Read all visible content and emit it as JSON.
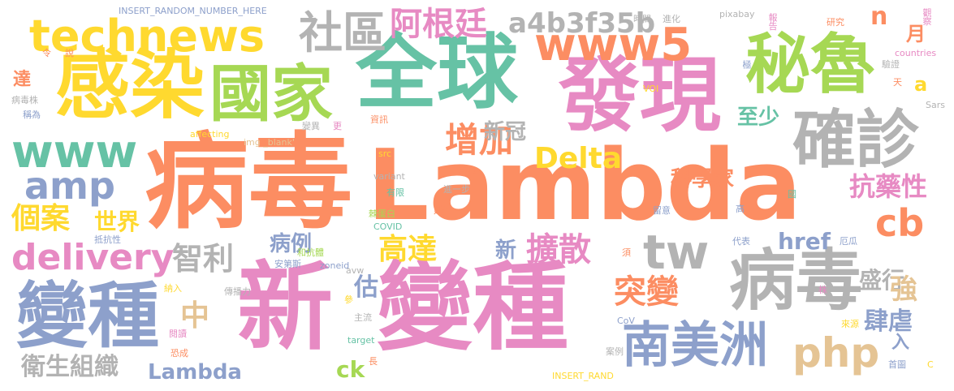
{
  "words": [
    {
      "text": "病毒",
      "color": "#fc8d62"
    },
    {
      "text": "Lambda",
      "color": "#fc8d62"
    },
    {
      "text": "新",
      "color": "#e78ac3"
    },
    {
      "text": "變種",
      "color": "#e78ac3"
    },
    {
      "text": "感染",
      "color": "#ffd92f"
    },
    {
      "text": "國家",
      "color": "#a6d854"
    },
    {
      "text": "全球",
      "color": "#66c2a5"
    },
    {
      "text": "發現",
      "color": "#e78ac3"
    },
    {
      "text": "秘魯",
      "color": "#a6d854"
    },
    {
      "text": "www5",
      "color": "#fc8d62"
    },
    {
      "text": "technews",
      "color": "#ffd92f"
    },
    {
      "text": "確診",
      "color": "#b3b3b3"
    },
    {
      "text": "病毒",
      "color": "#b3b3b3"
    },
    {
      "text": "變種",
      "color": "#8da0cb"
    },
    {
      "text": "南美洲",
      "color": "#8da0cb"
    },
    {
      "text": "www",
      "color": "#66c2a5"
    },
    {
      "text": "amp",
      "color": "#8da0cb"
    },
    {
      "text": "delivery",
      "color": "#e78ac3"
    },
    {
      "text": "社區",
      "color": "#b3b3b3"
    },
    {
      "text": "阿根廷",
      "color": "#e78ac3"
    },
    {
      "text": "a4b3f35b",
      "color": "#b3b3b3"
    },
    {
      "text": "tw",
      "color": "#b3b3b3"
    },
    {
      "text": "增加",
      "color": "#fc8d62"
    },
    {
      "text": "Delta",
      "color": "#ffd92f"
    },
    {
      "text": "cb",
      "color": "#fc8d62"
    },
    {
      "text": "擴散",
      "color": "#e78ac3"
    },
    {
      "text": "突變",
      "color": "#fc8d62"
    },
    {
      "text": "php",
      "color": "#e5c494"
    },
    {
      "text": "智利",
      "color": "#b3b3b3"
    },
    {
      "text": "高達",
      "color": "#ffd92f"
    },
    {
      "text": "個案",
      "color": "#ffd92f"
    },
    {
      "text": "世界",
      "color": "#ffd92f"
    },
    {
      "text": "抗藥性",
      "color": "#e78ac3"
    },
    {
      "text": "科學家",
      "color": "#fc8d62"
    },
    {
      "text": "新冠",
      "color": "#b3b3b3"
    },
    {
      "text": "至少",
      "color": "#66c2a5"
    },
    {
      "text": "衛生組織",
      "color": "#b3b3b3"
    },
    {
      "text": "Lambda",
      "color": "#8da0cb"
    },
    {
      "text": "中",
      "color": "#e5c494"
    },
    {
      "text": "肆虐",
      "color": "#8da0cb"
    },
    {
      "text": "盛行",
      "color": "#b3b3b3"
    },
    {
      "text": "href",
      "color": "#8da0cb"
    },
    {
      "text": "病例",
      "color": "#8da0cb"
    },
    {
      "text": "新",
      "color": "#8da0cb"
    },
    {
      "text": "估",
      "color": "#8da0cb"
    },
    {
      "text": "強",
      "color": "#e5c494"
    },
    {
      "text": "ck",
      "color": "#a6d854"
    },
    {
      "text": "n",
      "color": "#fc8d62"
    },
    {
      "text": "月",
      "color": "#fc8d62"
    },
    {
      "text": "a",
      "color": "#ffd92f"
    },
    {
      "text": "達",
      "color": "#fc8d62"
    },
    {
      "text": "入",
      "color": "#8da0cb"
    },
    {
      "text": "INSERT_RANDOM_NUMBER_HERE",
      "color": "#8da0cb"
    },
    {
      "text": "令",
      "color": "#fc8d62"
    },
    {
      "text": "說",
      "color": "#fc8d62"
    },
    {
      "text": "病毒株",
      "color": "#b3b3b3"
    },
    {
      "text": "稱為",
      "color": "#8da0cb"
    },
    {
      "text": "時間",
      "color": "#b3b3b3"
    },
    {
      "text": "進化",
      "color": "#b3b3b3"
    },
    {
      "text": "pixabay",
      "color": "#b3b3b3"
    },
    {
      "text": "報告",
      "color": "#e78ac3"
    },
    {
      "text": "研究",
      "color": "#fc8d62"
    },
    {
      "text": "觀察",
      "color": "#e78ac3"
    },
    {
      "text": "countries",
      "color": "#e78ac3"
    },
    {
      "text": "驗證",
      "color": "#b3b3b3"
    },
    {
      "text": "天",
      "color": "#fc8d62"
    },
    {
      "text": "極",
      "color": "#8da0cb"
    },
    {
      "text": "VOI",
      "color": "#ffd92f"
    },
    {
      "text": "Sars",
      "color": "#b3b3b3"
    },
    {
      "text": "資訊",
      "color": "#fc8d62"
    },
    {
      "text": "affecting",
      "color": "#ffd92f"
    },
    {
      "text": "變異",
      "color": "#b3b3b3"
    },
    {
      "text": "更",
      "color": "#e78ac3"
    },
    {
      "text": "img _blank'",
      "color": "#e5c494"
    },
    {
      "text": "src",
      "color": "#ffd92f"
    },
    {
      "text": "憂心",
      "color": "#fc8d62"
    },
    {
      "text": "variant",
      "color": "#b3b3b3"
    },
    {
      "text": "有限",
      "color": "#66c2a5"
    },
    {
      "text": "進一步",
      "color": "#b3b3b3"
    },
    {
      "text": "國",
      "color": "#66c2a5"
    },
    {
      "text": "留意",
      "color": "#8da0cb"
    },
    {
      "text": "高",
      "color": "#8da0cb"
    },
    {
      "text": "棘蛋白",
      "color": "#a6d854"
    },
    {
      "text": "延伸",
      "color": "#fc8d62"
    },
    {
      "text": "COVID",
      "color": "#66c2a5"
    },
    {
      "text": "抵抗性",
      "color": "#8da0cb"
    },
    {
      "text": "和抗體",
      "color": "#a6d854"
    },
    {
      "text": "代表",
      "color": "#8da0cb"
    },
    {
      "text": "厄瓜",
      "color": "#8da0cb"
    },
    {
      "text": "安第斯",
      "color": "#8da0cb"
    },
    {
      "text": "zoneid",
      "color": "#8da0cb"
    },
    {
      "text": "avw",
      "color": "#b3b3b3"
    },
    {
      "text": "須",
      "color": "#fc8d62"
    },
    {
      "text": "納入",
      "color": "#ffd92f"
    },
    {
      "text": "傳播力",
      "color": "#b3b3b3"
    },
    {
      "text": "株",
      "color": "#e78ac3"
    },
    {
      "text": "參",
      "color": "#ffd92f"
    },
    {
      "text": "主流",
      "color": "#b3b3b3"
    },
    {
      "text": "CoV",
      "color": "#8da0cb"
    },
    {
      "text": "來源",
      "color": "#ffd92f"
    },
    {
      "text": "閱讀",
      "color": "#e78ac3"
    },
    {
      "text": "恐成",
      "color": "#fc8d62"
    },
    {
      "text": "target",
      "color": "#66c2a5"
    },
    {
      "text": "長",
      "color": "#fc8d62"
    },
    {
      "text": "案例",
      "color": "#b3b3b3"
    },
    {
      "text": "INSERT_RAND",
      "color": "#ffd92f"
    },
    {
      "text": "首圖",
      "color": "#8da0cb"
    },
    {
      "text": "C",
      "color": "#ffd92f"
    }
  ]
}
